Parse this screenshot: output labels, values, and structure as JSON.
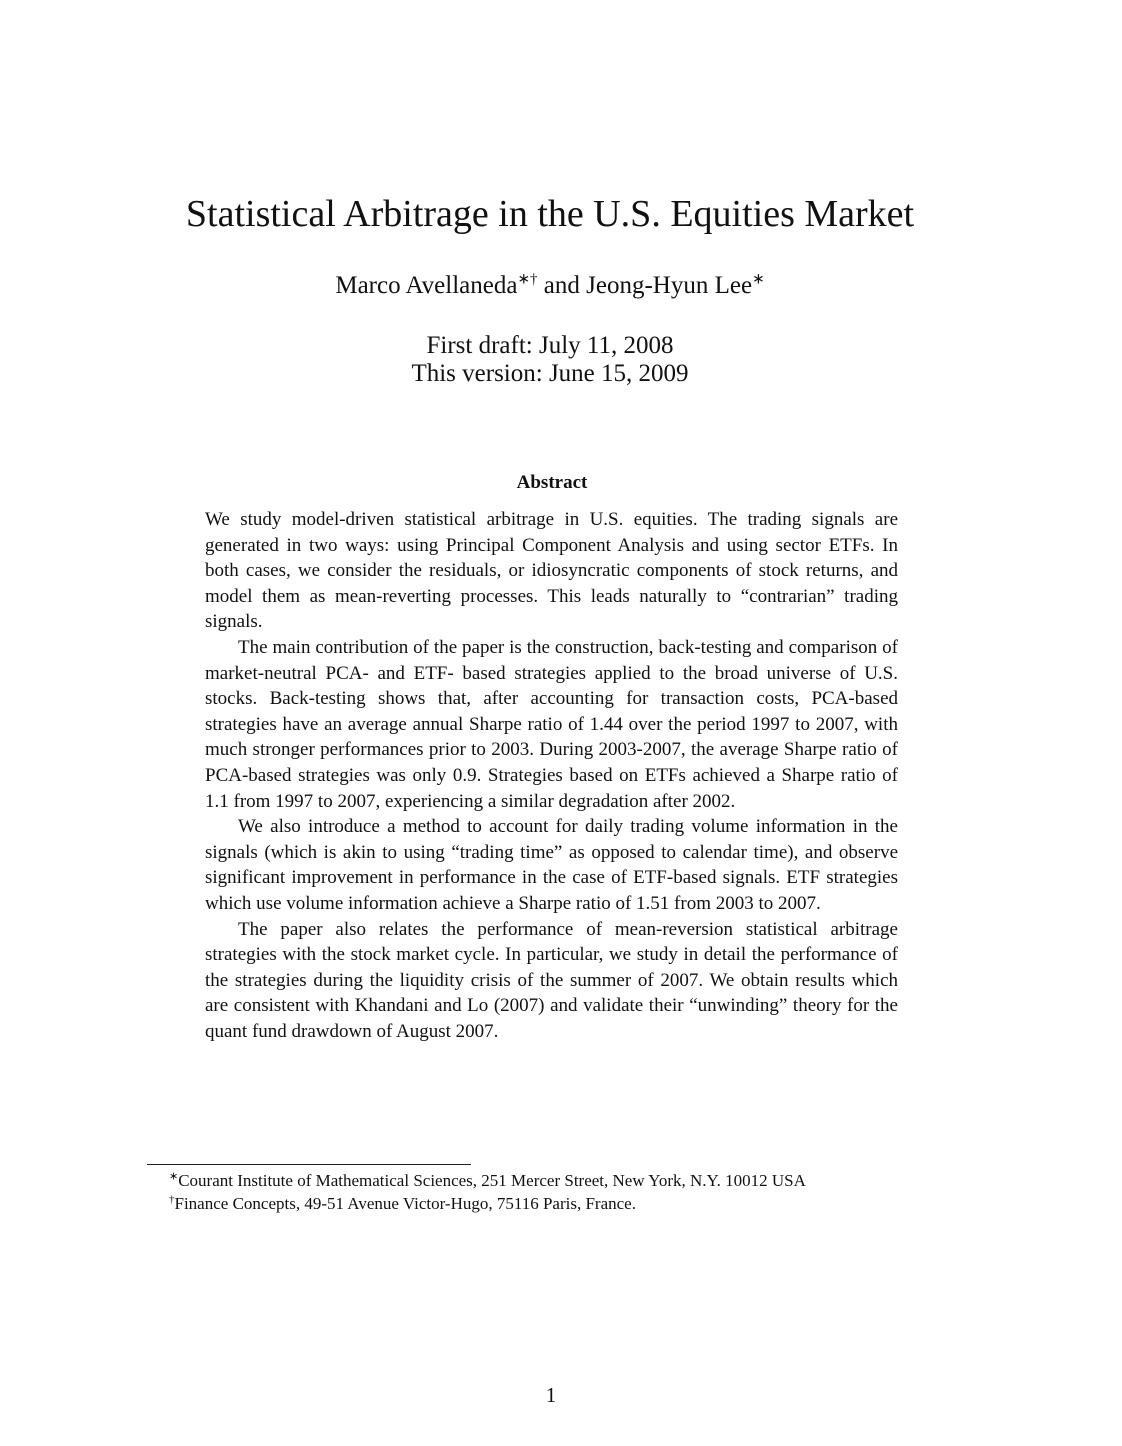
{
  "title": "Statistical Arbitrage in the U.S. Equities Market",
  "authors": {
    "author1": "Marco Avellaneda",
    "author1_marks": "∗†",
    "connector": " and ",
    "author2": "Jeong-Hyun Lee",
    "author2_marks": "∗"
  },
  "dates": {
    "first_draft": "First draft: July 11, 2008",
    "this_version": "This version: June 15, 2009"
  },
  "abstract": {
    "heading": "Abstract",
    "paragraphs": [
      "We study model-driven statistical arbitrage in U.S. equities. The trading signals are generated in two ways: using Principal Component Analysis and using sector ETFs. In both cases, we consider the residuals, or idiosyncratic components of stock returns, and model them as mean-reverting processes. This leads naturally to “contrarian” trading signals.",
      "The main contribution of the paper is the construction, back-testing and comparison of market-neutral PCA- and ETF- based strategies applied to the broad universe of U.S. stocks. Back-testing shows that, after accounting for transaction costs, PCA-based strategies have an average annual Sharpe ratio of 1.44 over the period 1997 to 2007, with much stronger performances prior to 2003. During 2003-2007, the average Sharpe ratio of PCA-based strategies was only 0.9. Strategies based on ETFs achieved a Sharpe ratio of 1.1 from 1997 to 2007, experiencing a similar degradation after 2002.",
      "We also introduce a method to account for daily trading volume information in the signals (which is akin to using “trading time” as opposed to calendar time), and observe significant improvement in performance in the case of ETF-based signals. ETF strategies which use volume information achieve a Sharpe ratio of 1.51 from 2003 to 2007.",
      "The paper also relates the performance of mean-reversion statistical arbitrage strategies with the stock market cycle. In particular, we study in detail the performance of the strategies during the liquidity crisis of the summer of 2007. We obtain results which are consistent with Khandani and Lo (2007) and validate their “unwinding” theory for the quant fund drawdown of August 2007."
    ]
  },
  "footnotes": [
    {
      "mark": "∗",
      "text": "Courant Institute of Mathematical Sciences, 251 Mercer Street, New York, N.Y. 10012 USA"
    },
    {
      "mark": "†",
      "text": "Finance Concepts, 49-51 Avenue Victor-Hugo, 75116 Paris, France."
    }
  ],
  "page_number": "1"
}
